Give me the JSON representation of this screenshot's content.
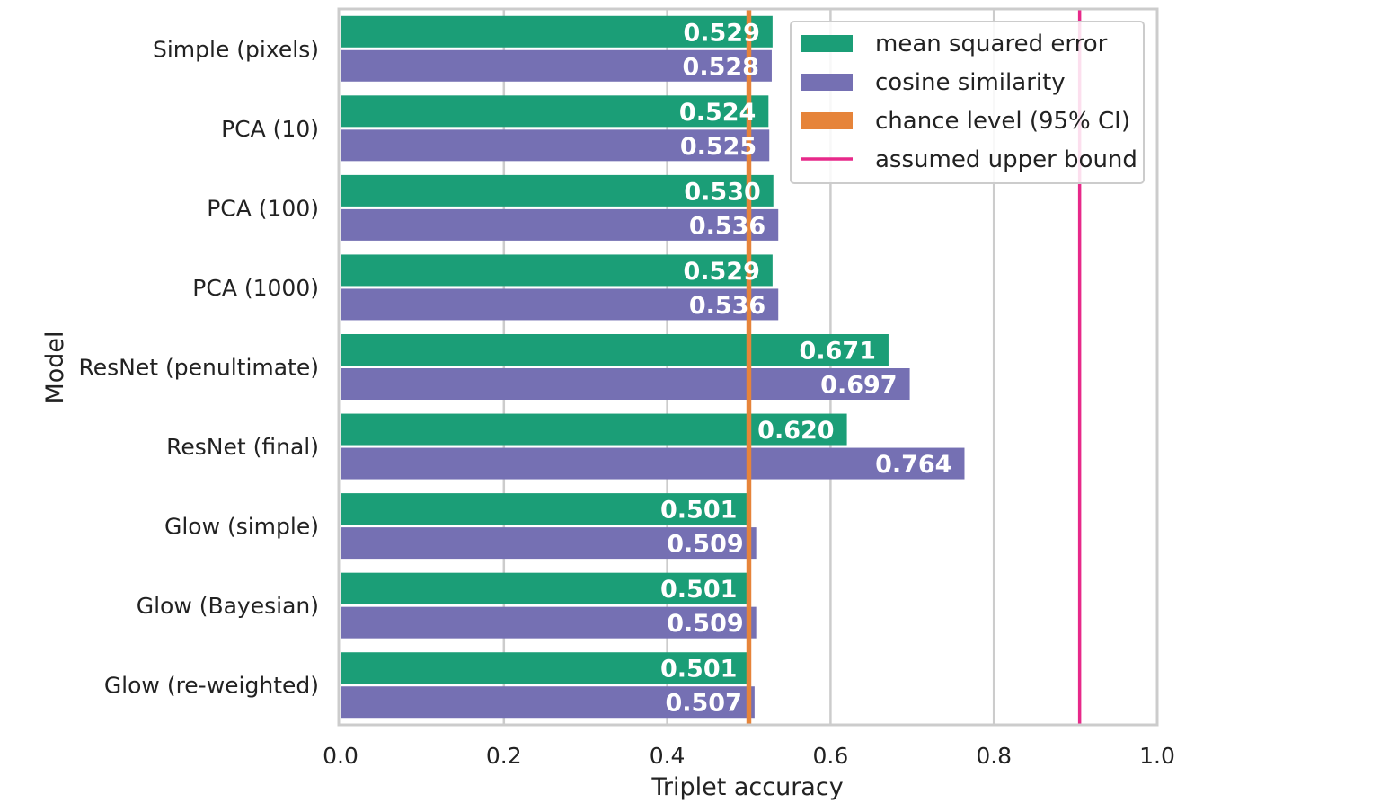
{
  "chart_data": {
    "type": "bar",
    "orientation": "horizontal",
    "title": "",
    "xlabel": "Triplet accuracy",
    "ylabel": "Model",
    "xlim": [
      0.0,
      1.0
    ],
    "xticks": [
      "0.0",
      "0.2",
      "0.4",
      "0.6",
      "0.8",
      "1.0"
    ],
    "grid": true,
    "legend_position": "top-right",
    "categories": [
      "Simple (pixels)",
      "PCA (10)",
      "PCA (100)",
      "PCA (1000)",
      "ResNet (penultimate)",
      "ResNet (final)",
      "Glow (simple)",
      "Glow (Bayesian)",
      "Glow (re-weighted)"
    ],
    "series": [
      {
        "name": "mean squared error",
        "color": "#1b9e77",
        "values": [
          0.529,
          0.524,
          0.53,
          0.529,
          0.671,
          0.62,
          0.501,
          0.501,
          0.501
        ],
        "labels": [
          "0.529",
          "0.524",
          "0.530",
          "0.529",
          "0.671",
          "0.620",
          "0.501",
          "0.501",
          "0.501"
        ]
      },
      {
        "name": "cosine similarity",
        "color": "#7570b3",
        "values": [
          0.528,
          0.525,
          0.536,
          0.536,
          0.697,
          0.764,
          0.509,
          0.509,
          0.507
        ],
        "labels": [
          "0.528",
          "0.525",
          "0.536",
          "0.536",
          "0.697",
          "0.764",
          "0.509",
          "0.509",
          "0.507"
        ]
      }
    ],
    "reference_lines": [
      {
        "name": "chance level (95% CI)",
        "color": "#e6843a",
        "range": [
          0.497,
          0.503
        ],
        "style": "band"
      },
      {
        "name": "assumed upper bound",
        "color": "#e7298a",
        "value": 0.905,
        "style": "line"
      }
    ],
    "legend": [
      {
        "label": "mean squared error",
        "color": "#1b9e77",
        "kind": "patch"
      },
      {
        "label": "cosine similarity",
        "color": "#7570b3",
        "kind": "patch"
      },
      {
        "label": "chance level (95% CI)",
        "color": "#e6843a",
        "kind": "patch"
      },
      {
        "label": "assumed upper bound",
        "color": "#e7298a",
        "kind": "line"
      }
    ]
  }
}
